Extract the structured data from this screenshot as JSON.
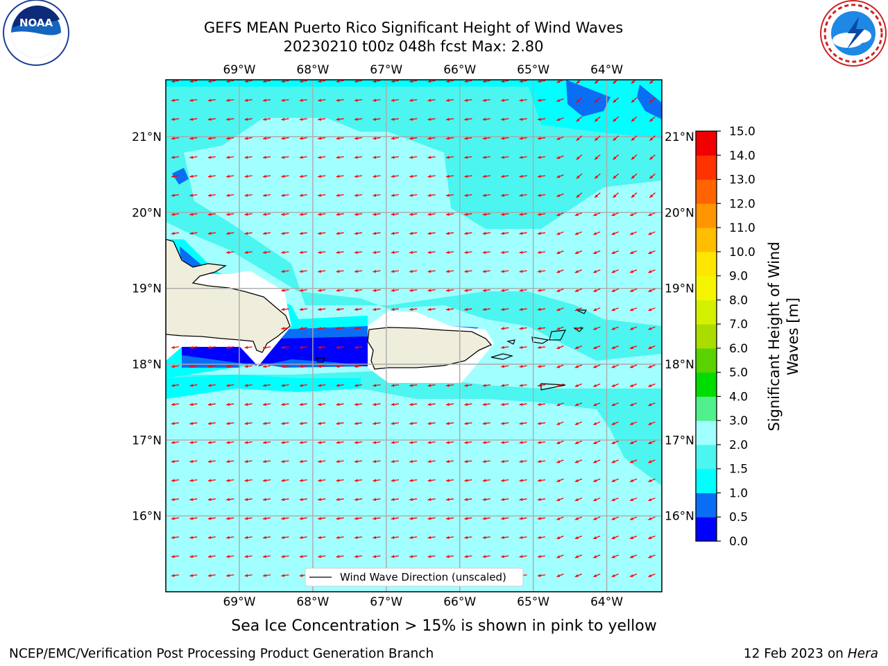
{
  "title": {
    "line1": "GEFS MEAN Puerto Rico Significant Height of Wind Waves",
    "line2": "20230210 t00z 048h fcst   Max: 2.80"
  },
  "logos": {
    "left": "noaa-logo",
    "left_text": "NOAA",
    "right": "nws-logo",
    "right_text": "NATIONAL WEATHER SERVICE"
  },
  "map": {
    "lon_ticks": [
      "69°W",
      "68°W",
      "67°W",
      "66°W",
      "65°W",
      "64°W"
    ],
    "lat_ticks": [
      "21°N",
      "20°N",
      "19°N",
      "18°N",
      "17°N",
      "16°N"
    ],
    "lon_range": [
      -70.0,
      -63.25
    ],
    "lat_range": [
      15.0,
      21.75
    ],
    "gridlines": true,
    "wind_direction": "from east-northeast (arrows pointing west-southwest)",
    "legend_label": "Wind Wave Direction (unscaled)",
    "legend_placement": "bottom-center"
  },
  "colorbar": {
    "label_line1": "Significant Height of Wind",
    "label_line2": "Waves [m]",
    "levels": [
      "0.0",
      "0.5",
      "1.0",
      "1.5",
      "2.0",
      "3.0",
      "4.0",
      "5.0",
      "6.0",
      "7.0",
      "8.0",
      "9.0",
      "10.0",
      "11.0",
      "12.0",
      "13.0",
      "14.0",
      "15.0"
    ],
    "colors": [
      "#0000ff",
      "#0a6ef5",
      "#00ffff",
      "#4cf5f0",
      "#a2ffff",
      "#50f08c",
      "#00dc00",
      "#5ad200",
      "#aadc00",
      "#d2f000",
      "#f5f500",
      "#ffe600",
      "#ffbe00",
      "#ff9600",
      "#ff6400",
      "#ff3200",
      "#f00000"
    ]
  },
  "chart_data": {
    "type": "heatmap",
    "title": "GEFS MEAN Puerto Rico Significant Height of Wind Waves",
    "subtitle": "20230210 t00z 048h fcst   Max: 2.80",
    "variable": "Significant Height of Wind Waves [m]",
    "max_value": 2.8,
    "xlabel": "",
    "ylabel": "",
    "xlim": [
      -70.0,
      -63.25
    ],
    "ylim": [
      15.0,
      21.75
    ],
    "dominant_ranges_m": {
      "open_ocean_north": [
        1.5,
        2.0
      ],
      "open_ocean_central": [
        2.0,
        3.0
      ],
      "mona_passage": [
        0.0,
        0.5
      ],
      "caribbean_south": [
        2.0,
        3.0
      ]
    }
  },
  "footer": {
    "ice_note": "Sea Ice Concentration > 15% is shown in pink to yellow",
    "credit_left": "NCEP/EMC/Verification Post Processing Product Generation Branch",
    "credit_right_prefix": "12 Feb 2023 on ",
    "credit_right_machine": "Hera"
  }
}
